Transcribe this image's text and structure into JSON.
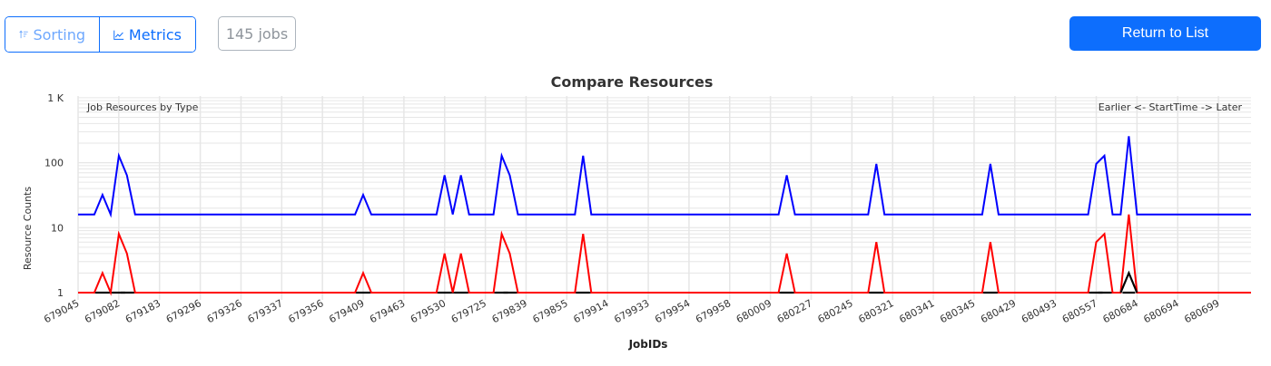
{
  "toolbar": {
    "sorting_label": "Sorting",
    "metrics_label": "Metrics",
    "jobs_count": "145 jobs",
    "return_label": "Return to List",
    "sorting_icon": "sort-ascending-icon",
    "metrics_icon": "line-chart-icon",
    "accent_color": "#0d6efd"
  },
  "chart_data": {
    "type": "line",
    "title": "Compare Resources",
    "subtitle_left": "Job Resources by Type",
    "subtitle_right": "Earlier <- StartTime -> Later",
    "xlabel": "JobIDs",
    "ylabel": "Resource Counts",
    "yscale": "log",
    "ylim": [
      1,
      1000
    ],
    "y_ticks": [
      "1",
      "10",
      "100",
      "1 K"
    ],
    "grid": true,
    "n_points": 145,
    "x_tick_labels": [
      "679045",
      "679082",
      "679183",
      "679296",
      "679326",
      "679337",
      "679356",
      "679409",
      "679463",
      "679530",
      "679725",
      "679839",
      "679855",
      "679914",
      "679933",
      "679954",
      "679958",
      "680009",
      "680227",
      "680245",
      "680321",
      "680341",
      "680345",
      "680429",
      "680493",
      "680557",
      "680684",
      "680694",
      "680699"
    ],
    "series": [
      {
        "name": "blue",
        "color": "#0000ff",
        "baseline": 16,
        "peaks": {
          "3": 32,
          "5": 128,
          "6": 64,
          "35": 32,
          "45": 64,
          "47": 64,
          "52": 128,
          "53": 64,
          "62": 128,
          "87": 64,
          "98": 96,
          "112": 96,
          "125": 96,
          "126": 128,
          "129": 256
        }
      },
      {
        "name": "red",
        "color": "#ff0000",
        "baseline": 1,
        "peaks": {
          "3": 2,
          "5": 8,
          "6": 4,
          "35": 2,
          "45": 4,
          "47": 4,
          "52": 8,
          "53": 4,
          "62": 8,
          "87": 4,
          "98": 6,
          "112": 6,
          "125": 6,
          "126": 8,
          "129": 16
        }
      },
      {
        "name": "black",
        "color": "#000000",
        "baseline": 1,
        "peaks": {
          "129": 2
        }
      }
    ]
  }
}
